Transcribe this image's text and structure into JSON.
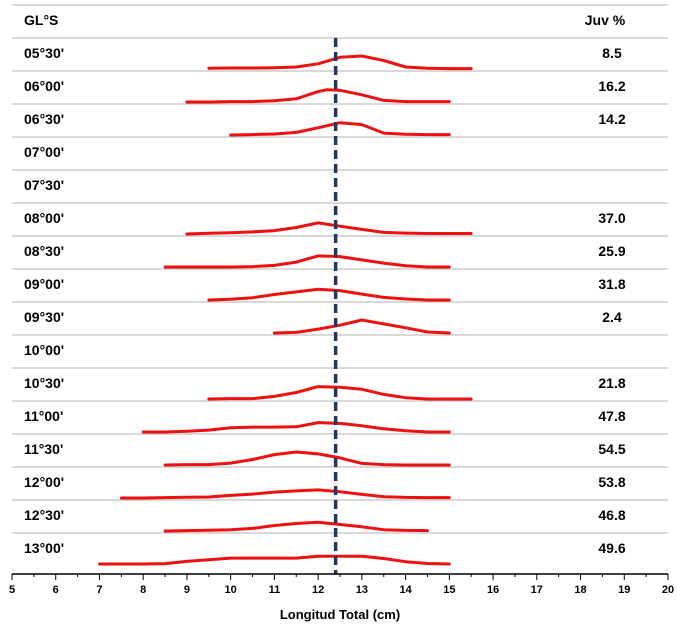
{
  "chart_data": {
    "type": "line",
    "title": "",
    "header_left": "GL°S",
    "header_right": "Juv %",
    "xlabel": "Longitud Total (cm)",
    "xlim": [
      5,
      20
    ],
    "x_ticks": [
      "5",
      "6",
      "7",
      "8",
      "9",
      "10",
      "11",
      "12",
      "13",
      "14",
      "15",
      "16",
      "17",
      "18",
      "19",
      "20"
    ],
    "reference_line_x": 12.4,
    "line_color": "#ee1111",
    "ref_color": "#1f3864",
    "rows": [
      {
        "label": "05°30'",
        "juv": "8.5",
        "points": [
          [
            9.5,
            0.06
          ],
          [
            10,
            0.08
          ],
          [
            10.5,
            0.08
          ],
          [
            11,
            0.1
          ],
          [
            11.5,
            0.15
          ],
          [
            12,
            0.4
          ],
          [
            12.5,
            0.9
          ],
          [
            13,
            1.0
          ],
          [
            13.5,
            0.65
          ],
          [
            14,
            0.15
          ],
          [
            14.5,
            0.05
          ],
          [
            15,
            0.03
          ],
          [
            15.5,
            0.03
          ]
        ]
      },
      {
        "label": "06°00'",
        "juv": "16.2",
        "points": [
          [
            9,
            0.0
          ],
          [
            9.5,
            0.0
          ],
          [
            10,
            0.03
          ],
          [
            10.5,
            0.03
          ],
          [
            11,
            0.1
          ],
          [
            11.5,
            0.25
          ],
          [
            12,
            0.8
          ],
          [
            12.2,
            0.95
          ],
          [
            12.5,
            0.9
          ],
          [
            13,
            0.55
          ],
          [
            13.5,
            0.12
          ],
          [
            14,
            0.03
          ],
          [
            14.5,
            0.03
          ],
          [
            15,
            0.03
          ]
        ]
      },
      {
        "label": "06°30'",
        "juv": "14.2",
        "points": [
          [
            10,
            0.0
          ],
          [
            10.5,
            0.03
          ],
          [
            11,
            0.08
          ],
          [
            11.5,
            0.2
          ],
          [
            12,
            0.55
          ],
          [
            12.5,
            0.95
          ],
          [
            13,
            0.8
          ],
          [
            13.5,
            0.15
          ],
          [
            14,
            0.05
          ],
          [
            14.5,
            0.03
          ],
          [
            15,
            0.03
          ]
        ]
      },
      {
        "label": "07°00'",
        "juv": "",
        "points": []
      },
      {
        "label": "07°30'",
        "juv": "",
        "points": []
      },
      {
        "label": "08°00'",
        "juv": "37.0",
        "points": [
          [
            9,
            0.0
          ],
          [
            9.5,
            0.06
          ],
          [
            10,
            0.1
          ],
          [
            10.5,
            0.16
          ],
          [
            11,
            0.26
          ],
          [
            11.5,
            0.5
          ],
          [
            12,
            0.85
          ],
          [
            12.5,
            0.6
          ],
          [
            13,
            0.35
          ],
          [
            13.5,
            0.12
          ],
          [
            14,
            0.07
          ],
          [
            14.5,
            0.04
          ],
          [
            15,
            0.04
          ],
          [
            15.5,
            0.04
          ]
        ]
      },
      {
        "label": "08°30'",
        "juv": "25.9",
        "points": [
          [
            8.5,
            0.0
          ],
          [
            9,
            0.0
          ],
          [
            9.5,
            0.0
          ],
          [
            10,
            0.0
          ],
          [
            10.5,
            0.03
          ],
          [
            11,
            0.12
          ],
          [
            11.5,
            0.38
          ],
          [
            12,
            0.85
          ],
          [
            12.5,
            0.8
          ],
          [
            13,
            0.55
          ],
          [
            13.5,
            0.3
          ],
          [
            14,
            0.1
          ],
          [
            14.5,
            0.0
          ],
          [
            15,
            0.0
          ]
        ]
      },
      {
        "label": "09°00'",
        "juv": "31.8",
        "points": [
          [
            9.5,
            0.0
          ],
          [
            10,
            0.06
          ],
          [
            10.5,
            0.18
          ],
          [
            11,
            0.42
          ],
          [
            11.5,
            0.62
          ],
          [
            12,
            0.82
          ],
          [
            12.5,
            0.72
          ],
          [
            13,
            0.45
          ],
          [
            13.5,
            0.2
          ],
          [
            14,
            0.08
          ],
          [
            14.5,
            0.0
          ],
          [
            15,
            0.0
          ]
        ]
      },
      {
        "label": "09°30'",
        "juv": "2.4",
        "points": [
          [
            11,
            0.0
          ],
          [
            11.5,
            0.05
          ],
          [
            12,
            0.3
          ],
          [
            12.5,
            0.6
          ],
          [
            13,
            1.0
          ],
          [
            13.5,
            0.7
          ],
          [
            14,
            0.4
          ],
          [
            14.5,
            0.08
          ],
          [
            15,
            0.0
          ]
        ]
      },
      {
        "label": "10°00'",
        "juv": "",
        "points": []
      },
      {
        "label": "10°30'",
        "juv": "21.8",
        "points": [
          [
            9.5,
            0.0
          ],
          [
            10,
            0.03
          ],
          [
            10.5,
            0.03
          ],
          [
            11,
            0.2
          ],
          [
            11.5,
            0.5
          ],
          [
            12,
            0.95
          ],
          [
            12.5,
            0.9
          ],
          [
            13,
            0.75
          ],
          [
            13.5,
            0.35
          ],
          [
            14,
            0.1
          ],
          [
            14.5,
            0.0
          ],
          [
            15,
            0.0
          ],
          [
            15.5,
            0.0
          ]
        ]
      },
      {
        "label": "11°00'",
        "juv": "47.8",
        "points": [
          [
            8,
            0.0
          ],
          [
            8.5,
            0.0
          ],
          [
            9,
            0.06
          ],
          [
            9.5,
            0.15
          ],
          [
            10,
            0.32
          ],
          [
            10.5,
            0.38
          ],
          [
            11,
            0.38
          ],
          [
            11.5,
            0.4
          ],
          [
            12,
            0.72
          ],
          [
            12.5,
            0.66
          ],
          [
            13,
            0.48
          ],
          [
            13.5,
            0.25
          ],
          [
            14,
            0.1
          ],
          [
            14.5,
            0.0
          ],
          [
            15,
            0.0
          ]
        ]
      },
      {
        "label": "11°30'",
        "juv": "54.5",
        "points": [
          [
            8.5,
            0.0
          ],
          [
            9,
            0.03
          ],
          [
            9.5,
            0.03
          ],
          [
            10,
            0.15
          ],
          [
            10.5,
            0.42
          ],
          [
            11,
            0.8
          ],
          [
            11.5,
            1.0
          ],
          [
            12,
            0.85
          ],
          [
            12.5,
            0.55
          ],
          [
            13,
            0.12
          ],
          [
            13.5,
            0.03
          ],
          [
            14,
            0.0
          ],
          [
            14.5,
            0.0
          ],
          [
            15,
            0.0
          ]
        ]
      },
      {
        "label": "12°00'",
        "juv": "53.8",
        "points": [
          [
            7.5,
            0.0
          ],
          [
            8,
            0.0
          ],
          [
            8.5,
            0.03
          ],
          [
            9,
            0.06
          ],
          [
            9.5,
            0.08
          ],
          [
            10,
            0.2
          ],
          [
            10.5,
            0.3
          ],
          [
            11,
            0.45
          ],
          [
            11.5,
            0.55
          ],
          [
            12,
            0.62
          ],
          [
            12.5,
            0.48
          ],
          [
            13,
            0.28
          ],
          [
            13.5,
            0.1
          ],
          [
            14,
            0.05
          ],
          [
            14.5,
            0.03
          ],
          [
            15,
            0.03
          ]
        ]
      },
      {
        "label": "12°30'",
        "juv": "46.8",
        "points": [
          [
            8.5,
            0.0
          ],
          [
            9,
            0.03
          ],
          [
            9.5,
            0.06
          ],
          [
            10,
            0.1
          ],
          [
            10.5,
            0.2
          ],
          [
            11,
            0.42
          ],
          [
            11.5,
            0.58
          ],
          [
            12,
            0.68
          ],
          [
            12.5,
            0.5
          ],
          [
            13,
            0.32
          ],
          [
            13.5,
            0.1
          ],
          [
            14,
            0.05
          ],
          [
            14.5,
            0.03
          ]
        ]
      },
      {
        "label": "13°00'",
        "juv": "49.6",
        "points": [
          [
            7,
            0.0
          ],
          [
            7.5,
            0.0
          ],
          [
            8,
            0.0
          ],
          [
            8.5,
            0.03
          ],
          [
            9,
            0.2
          ],
          [
            9.5,
            0.32
          ],
          [
            10,
            0.45
          ],
          [
            10.5,
            0.45
          ],
          [
            11,
            0.45
          ],
          [
            11.5,
            0.45
          ],
          [
            12,
            0.6
          ],
          [
            12.5,
            0.6
          ],
          [
            13,
            0.6
          ],
          [
            13.5,
            0.42
          ],
          [
            14,
            0.18
          ],
          [
            14.5,
            0.04
          ],
          [
            15,
            0.0
          ]
        ]
      }
    ]
  }
}
